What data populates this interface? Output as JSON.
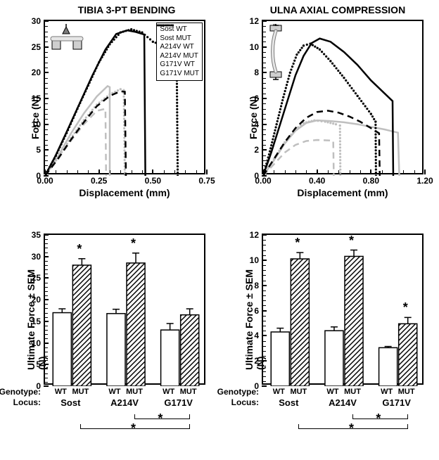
{
  "top_left": {
    "title": "TIBIA 3-PT BENDING",
    "xlabel": "Displacement (mm)",
    "ylabel": "Force (N)",
    "xlim": [
      0,
      0.75
    ],
    "ylim": [
      0,
      30
    ],
    "xticks": [
      0.0,
      0.25,
      0.5,
      0.75
    ],
    "yticks": [
      0,
      5,
      10,
      15,
      20,
      25,
      30
    ],
    "legend": [
      "Sost WT",
      "Sost MUT",
      "A214V WT",
      "A214V MUT",
      "G171V WT",
      "G171V MUT"
    ],
    "curves": {
      "sost_wt": {
        "color": "#bfbfbf",
        "dash": "none",
        "pts": [
          [
            0,
            0
          ],
          [
            0.06,
            3.8
          ],
          [
            0.12,
            8.2
          ],
          [
            0.18,
            12.1
          ],
          [
            0.24,
            15.4
          ],
          [
            0.29,
            17.4
          ],
          [
            0.3,
            17.2
          ],
          [
            0.3,
            0
          ]
        ]
      },
      "sost_mut": {
        "color": "#000000",
        "dash": "none",
        "pts": [
          [
            0,
            0
          ],
          [
            0.05,
            4
          ],
          [
            0.1,
            8.5
          ],
          [
            0.16,
            14
          ],
          [
            0.22,
            19.5
          ],
          [
            0.28,
            24.5
          ],
          [
            0.33,
            27.5
          ],
          [
            0.38,
            28.2
          ],
          [
            0.42,
            27.9
          ],
          [
            0.46,
            27.4
          ],
          [
            0.465,
            0
          ]
        ]
      },
      "a214v_wt": {
        "color": "#bfbfbf",
        "dash": "dot",
        "pts": [
          [
            0,
            0
          ],
          [
            0.06,
            3.5
          ],
          [
            0.12,
            7.3
          ],
          [
            0.18,
            10.8
          ],
          [
            0.24,
            13.8
          ],
          [
            0.3,
            15.8
          ],
          [
            0.35,
            16.8
          ],
          [
            0.365,
            16.6
          ],
          [
            0.37,
            0
          ]
        ]
      },
      "a214v_mut": {
        "color": "#000000",
        "dash": "dot",
        "pts": [
          [
            0,
            0
          ],
          [
            0.05,
            3.9
          ],
          [
            0.1,
            8.3
          ],
          [
            0.15,
            13
          ],
          [
            0.2,
            17.5
          ],
          [
            0.25,
            22
          ],
          [
            0.3,
            25.5
          ],
          [
            0.35,
            27.8
          ],
          [
            0.4,
            28.4
          ],
          [
            0.45,
            27.8
          ],
          [
            0.5,
            26
          ],
          [
            0.55,
            25.2
          ],
          [
            0.6,
            24.5
          ],
          [
            0.61,
            24
          ],
          [
            0.615,
            0
          ]
        ]
      },
      "g171v_wt": {
        "color": "#bfbfbf",
        "dash": "dash",
        "pts": [
          [
            0,
            0
          ],
          [
            0.06,
            3.2
          ],
          [
            0.12,
            6.8
          ],
          [
            0.18,
            10
          ],
          [
            0.24,
            12.6
          ],
          [
            0.28,
            13
          ],
          [
            0.283,
            0
          ]
        ]
      },
      "g171v_mut": {
        "color": "#000000",
        "dash": "dash",
        "pts": [
          [
            0,
            0
          ],
          [
            0.06,
            3.3
          ],
          [
            0.12,
            7
          ],
          [
            0.18,
            10.4
          ],
          [
            0.24,
            13.5
          ],
          [
            0.3,
            15.5
          ],
          [
            0.35,
            16.4
          ],
          [
            0.37,
            16.3
          ],
          [
            0.375,
            0
          ]
        ]
      }
    }
  },
  "top_right": {
    "title": "ULNA AXIAL COMPRESSION",
    "xlabel": "Displacement (mm)",
    "ylabel": "Force (N)",
    "xlim": [
      0,
      1.2
    ],
    "ylim": [
      0,
      12
    ],
    "xticks": [
      0.0,
      0.4,
      0.8,
      1.2
    ],
    "yticks": [
      0,
      2,
      4,
      6,
      8,
      10,
      12
    ],
    "curves": {
      "sost_wt": {
        "color": "#bfbfbf",
        "dash": "none",
        "pts": [
          [
            0,
            0
          ],
          [
            0.08,
            1.2
          ],
          [
            0.16,
            2.5
          ],
          [
            0.24,
            3.5
          ],
          [
            0.32,
            4.1
          ],
          [
            0.4,
            4.3
          ],
          [
            0.5,
            4.25
          ],
          [
            0.6,
            4.15
          ],
          [
            0.7,
            4.0
          ],
          [
            0.8,
            3.8
          ],
          [
            0.9,
            3.6
          ],
          [
            0.98,
            3.4
          ],
          [
            1.0,
            3.35
          ],
          [
            1.01,
            0
          ]
        ]
      },
      "sost_mut": {
        "color": "#000000",
        "dash": "none",
        "pts": [
          [
            0,
            0
          ],
          [
            0.06,
            1.8
          ],
          [
            0.12,
            3.8
          ],
          [
            0.18,
            5.8
          ],
          [
            0.24,
            7.8
          ],
          [
            0.3,
            9.3
          ],
          [
            0.36,
            10.3
          ],
          [
            0.42,
            10.65
          ],
          [
            0.5,
            10.4
          ],
          [
            0.6,
            9.6
          ],
          [
            0.7,
            8.6
          ],
          [
            0.8,
            7.4
          ],
          [
            0.9,
            6.4
          ],
          [
            0.96,
            5.8
          ],
          [
            0.965,
            0
          ]
        ]
      },
      "a214v_wt": {
        "color": "#bfbfbf",
        "dash": "dot",
        "pts": [
          [
            0,
            0
          ],
          [
            0.08,
            1.3
          ],
          [
            0.16,
            2.6
          ],
          [
            0.24,
            3.6
          ],
          [
            0.3,
            4.1
          ],
          [
            0.38,
            4.3
          ],
          [
            0.46,
            4.2
          ],
          [
            0.54,
            4.0
          ],
          [
            0.57,
            3.9
          ],
          [
            0.573,
            0
          ]
        ]
      },
      "a214v_mut": {
        "color": "#000000",
        "dash": "dot",
        "pts": [
          [
            0,
            0
          ],
          [
            0.05,
            1.9
          ],
          [
            0.1,
            4
          ],
          [
            0.15,
            6.1
          ],
          [
            0.2,
            8
          ],
          [
            0.25,
            9.4
          ],
          [
            0.3,
            10.1
          ],
          [
            0.35,
            10.25
          ],
          [
            0.42,
            9.8
          ],
          [
            0.5,
            8.9
          ],
          [
            0.6,
            7.6
          ],
          [
            0.7,
            6.2
          ],
          [
            0.8,
            4.8
          ],
          [
            0.834,
            4.2
          ],
          [
            0.837,
            0
          ]
        ]
      },
      "g171v_wt": {
        "color": "#bfbfbf",
        "dash": "dash",
        "pts": [
          [
            0,
            0
          ],
          [
            0.08,
            0.9
          ],
          [
            0.16,
            1.8
          ],
          [
            0.24,
            2.4
          ],
          [
            0.32,
            2.7
          ],
          [
            0.4,
            2.78
          ],
          [
            0.48,
            2.75
          ],
          [
            0.52,
            2.72
          ],
          [
            0.524,
            0
          ]
        ]
      },
      "g171v_mut": {
        "color": "#000000",
        "dash": "dash",
        "pts": [
          [
            0,
            0
          ],
          [
            0.08,
            1.3
          ],
          [
            0.16,
            2.6
          ],
          [
            0.24,
            3.7
          ],
          [
            0.32,
            4.5
          ],
          [
            0.4,
            4.95
          ],
          [
            0.48,
            5.05
          ],
          [
            0.56,
            4.9
          ],
          [
            0.64,
            4.6
          ],
          [
            0.72,
            4.2
          ],
          [
            0.8,
            3.7
          ],
          [
            0.86,
            3.3
          ],
          [
            0.865,
            0
          ]
        ]
      }
    }
  },
  "bottom_left": {
    "ylabel": "Ultimate Force ± SEM (N)",
    "ylim": [
      0,
      35
    ],
    "yticks": [
      0,
      5,
      10,
      15,
      20,
      25,
      30,
      35
    ],
    "groups": [
      "Sost",
      "A214V",
      "G171V"
    ],
    "bars": [
      {
        "g": "Sost",
        "k": "WT",
        "v": 17,
        "e": 0.9,
        "sig": false
      },
      {
        "g": "Sost",
        "k": "MUT",
        "v": 28,
        "e": 1.5,
        "sig": true
      },
      {
        "g": "A214V",
        "k": "WT",
        "v": 16.8,
        "e": 1.0,
        "sig": false
      },
      {
        "g": "A214V",
        "k": "MUT",
        "v": 28.5,
        "e": 2.3,
        "sig": true
      },
      {
        "g": "G171V",
        "k": "WT",
        "v": 13,
        "e": 1.5,
        "sig": false
      },
      {
        "g": "G171V",
        "k": "MUT",
        "v": 16.5,
        "e": 1.4,
        "sig": false
      }
    ],
    "sig_brackets": [
      [
        "A214V_MUT",
        "G171V_MUT"
      ],
      [
        "Sost_MUT",
        "G171V_MUT"
      ]
    ]
  },
  "bottom_right": {
    "ylabel": "Ultimate Force ± SEM (N)",
    "ylim": [
      0,
      12
    ],
    "yticks": [
      0,
      2,
      4,
      6,
      8,
      10,
      12
    ],
    "groups": [
      "Sost",
      "A214V",
      "G171V"
    ],
    "bars": [
      {
        "g": "Sost",
        "k": "WT",
        "v": 4.3,
        "e": 0.3,
        "sig": false
      },
      {
        "g": "Sost",
        "k": "MUT",
        "v": 10.1,
        "e": 0.5,
        "sig": true
      },
      {
        "g": "A214V",
        "k": "WT",
        "v": 4.4,
        "e": 0.3,
        "sig": false
      },
      {
        "g": "A214V",
        "k": "MUT",
        "v": 10.3,
        "e": 0.5,
        "sig": true
      },
      {
        "g": "G171V",
        "k": "WT",
        "v": 3.05,
        "e": 0.1,
        "sig": false
      },
      {
        "g": "G171V",
        "k": "MUT",
        "v": 4.95,
        "e": 0.5,
        "sig": true
      }
    ],
    "sig_brackets": [
      [
        "A214V_MUT",
        "G171V_MUT"
      ],
      [
        "Sost_MUT",
        "G171V_MUT"
      ]
    ]
  },
  "colors": {
    "gray": "#bfbfbf",
    "black": "#000000",
    "bg": "#ffffff"
  },
  "row_labels": {
    "genotype": "Genotype:",
    "locus": "Locus:"
  }
}
